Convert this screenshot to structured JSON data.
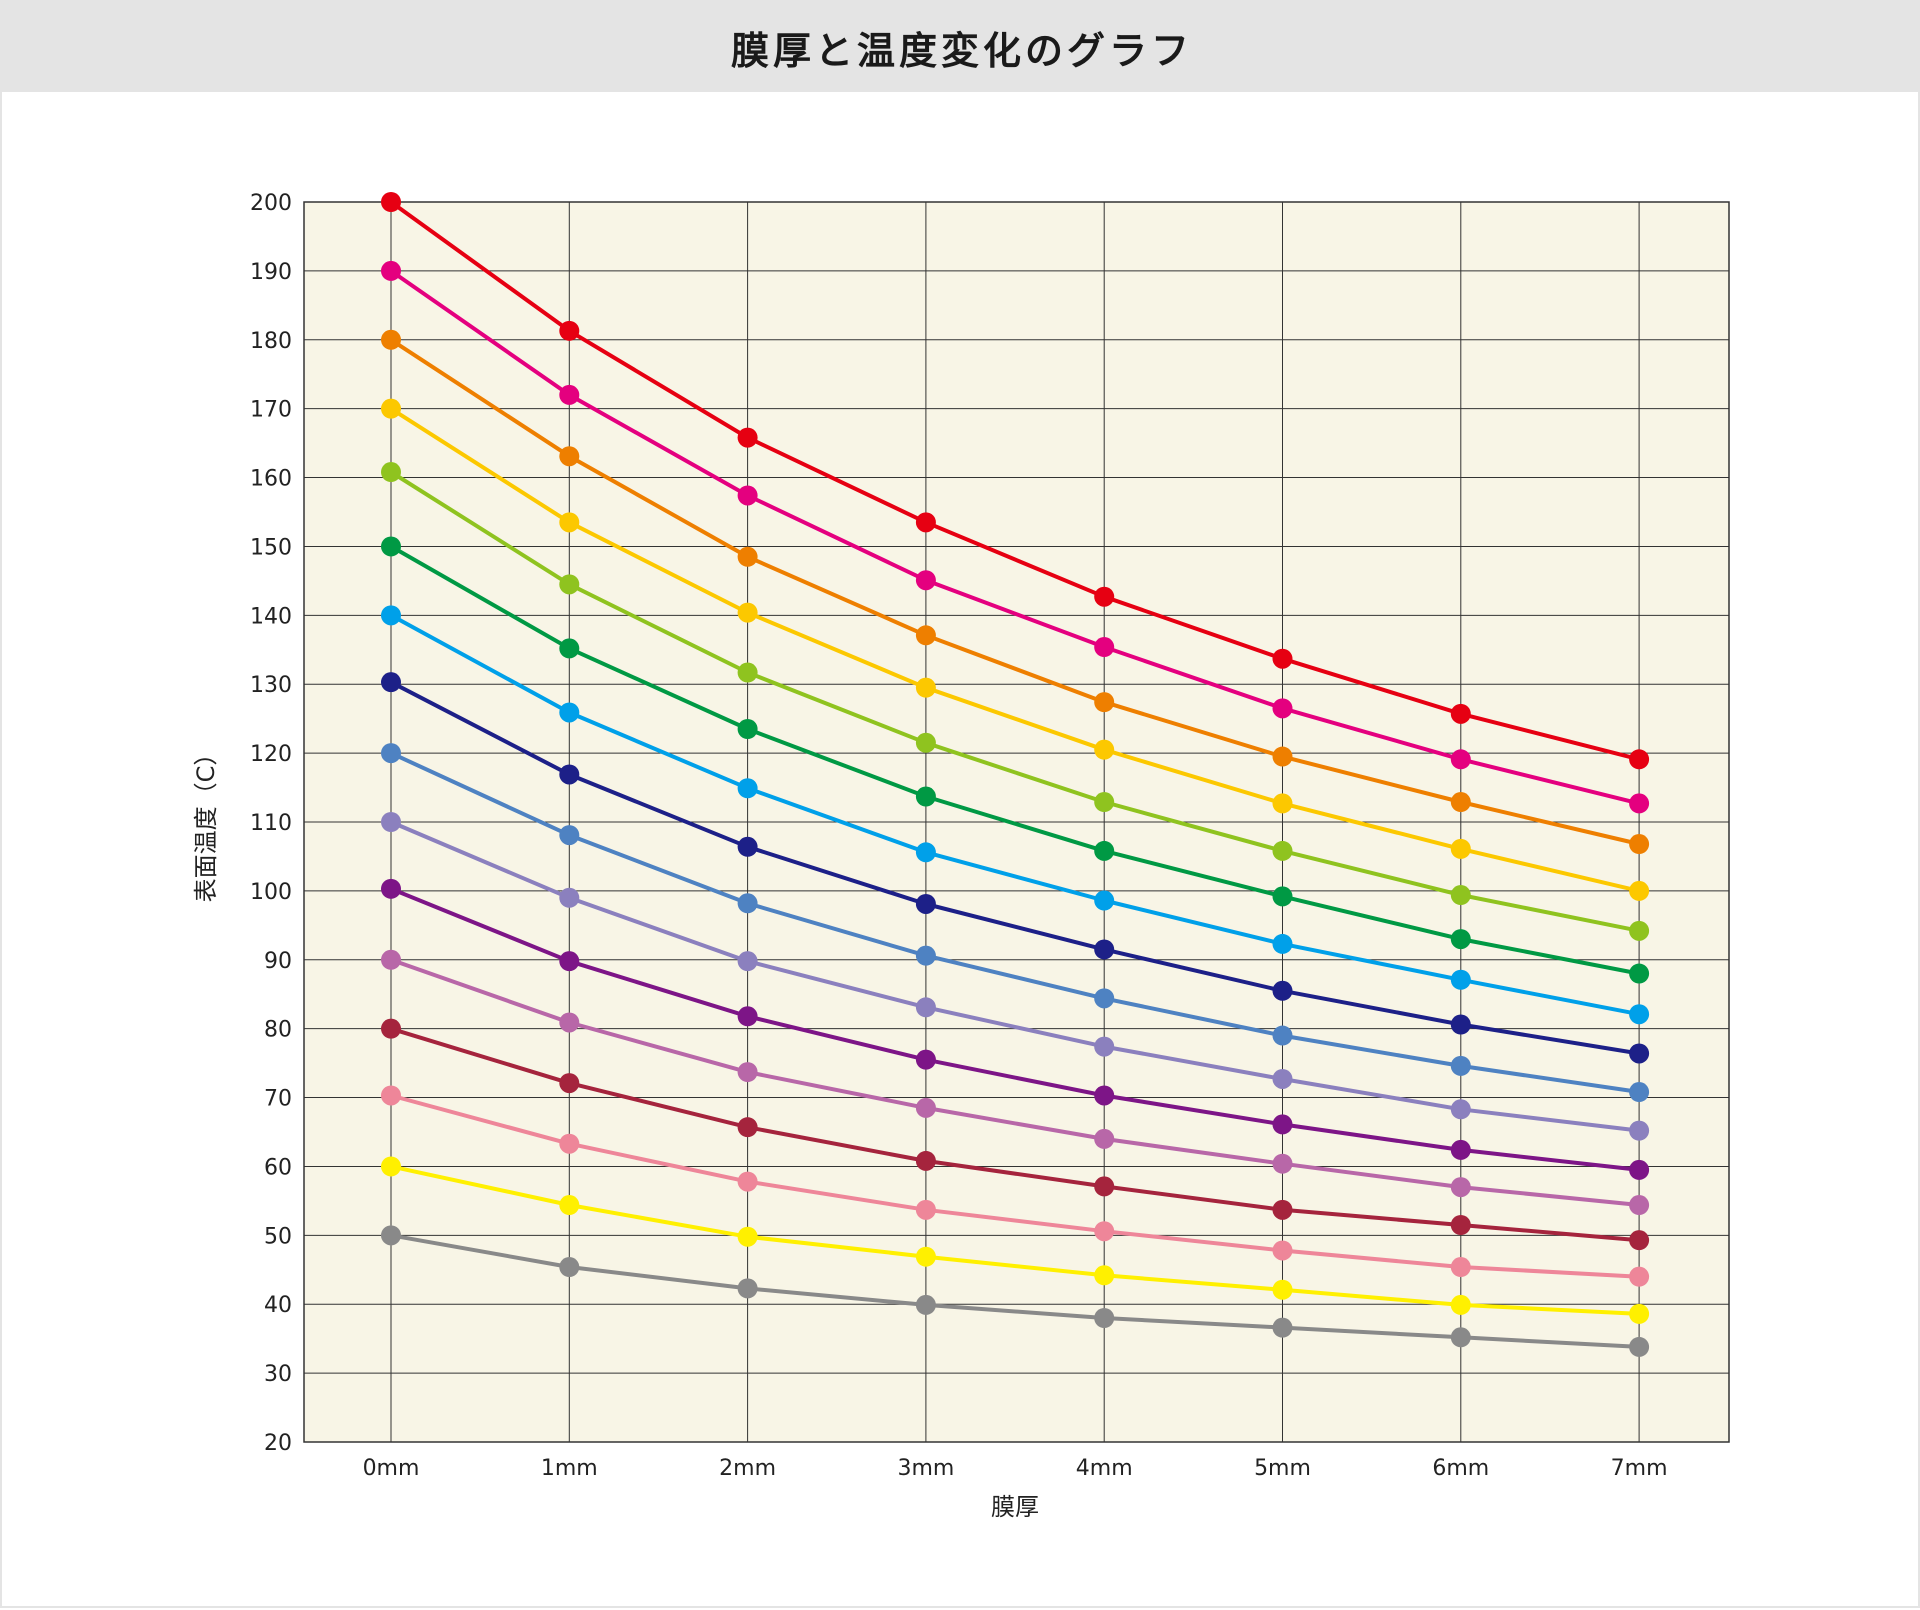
{
  "header": {
    "title": "膜厚と温度変化のグラフ"
  },
  "chart_data": {
    "type": "line",
    "title": "膜厚と温度変化のグラフ",
    "xlabel": "膜厚",
    "ylabel": "表面温度（C）",
    "categories": [
      "0mm",
      "1mm",
      "2mm",
      "3mm",
      "4mm",
      "5mm",
      "6mm",
      "7mm"
    ],
    "ylim": [
      20,
      200
    ],
    "yticks": [
      20,
      30,
      40,
      50,
      60,
      70,
      80,
      90,
      100,
      110,
      120,
      130,
      140,
      150,
      160,
      170,
      180,
      190,
      200
    ],
    "grid": true,
    "plot_background": "#f8f5e6",
    "series": [
      {
        "color": "#e60012",
        "values": [
          200,
          181.3,
          165.8,
          153.5,
          142.7,
          133.7,
          125.7,
          119.1
        ]
      },
      {
        "color": "#e4007f",
        "values": [
          190,
          172.0,
          157.4,
          145.1,
          135.4,
          126.5,
          119.1,
          112.7
        ]
      },
      {
        "color": "#ee7f00",
        "values": [
          180,
          163.1,
          148.5,
          137.1,
          127.4,
          119.5,
          112.9,
          106.8
        ]
      },
      {
        "color": "#fcc800",
        "values": [
          170,
          153.5,
          140.4,
          129.5,
          120.5,
          112.7,
          106.1,
          100.0
        ]
      },
      {
        "color": "#8fc31f",
        "values": [
          160.8,
          144.5,
          131.7,
          121.5,
          112.9,
          105.8,
          99.4,
          94.2
        ]
      },
      {
        "color": "#009944",
        "values": [
          150,
          135.2,
          123.5,
          113.7,
          105.8,
          99.2,
          93.0,
          88.0
        ]
      },
      {
        "color": "#00a0e9",
        "values": [
          140,
          125.9,
          114.9,
          105.6,
          98.6,
          92.3,
          87.1,
          82.1
        ]
      },
      {
        "color": "#1d2088",
        "values": [
          130.3,
          116.9,
          106.4,
          98.1,
          91.5,
          85.5,
          80.6,
          76.4
        ]
      },
      {
        "color": "#4e82c2",
        "values": [
          120,
          108.1,
          98.2,
          90.6,
          84.4,
          79.0,
          74.6,
          70.8
        ]
      },
      {
        "color": "#8b80be",
        "values": [
          110,
          99.0,
          89.8,
          83.1,
          77.4,
          72.7,
          68.3,
          65.2
        ]
      },
      {
        "color": "#7d1587",
        "values": [
          100.3,
          89.8,
          81.8,
          75.5,
          70.3,
          66.1,
          62.4,
          59.5
        ]
      },
      {
        "color": "#b867a8",
        "values": [
          90,
          80.9,
          73.7,
          68.5,
          64.0,
          60.4,
          57.0,
          54.4
        ]
      },
      {
        "color": "#a5243d",
        "values": [
          80,
          72.1,
          65.7,
          60.8,
          57.1,
          53.7,
          51.5,
          49.3
        ]
      },
      {
        "color": "#ee8699",
        "values": [
          70.3,
          63.3,
          57.8,
          53.7,
          50.6,
          47.8,
          45.4,
          44.0
        ]
      },
      {
        "color": "#fff000",
        "values": [
          60,
          54.4,
          49.8,
          46.9,
          44.2,
          42.1,
          39.9,
          38.6
        ]
      },
      {
        "color": "#898989",
        "values": [
          50,
          45.4,
          42.3,
          39.9,
          38.0,
          36.6,
          35.2,
          33.8
        ]
      }
    ]
  }
}
